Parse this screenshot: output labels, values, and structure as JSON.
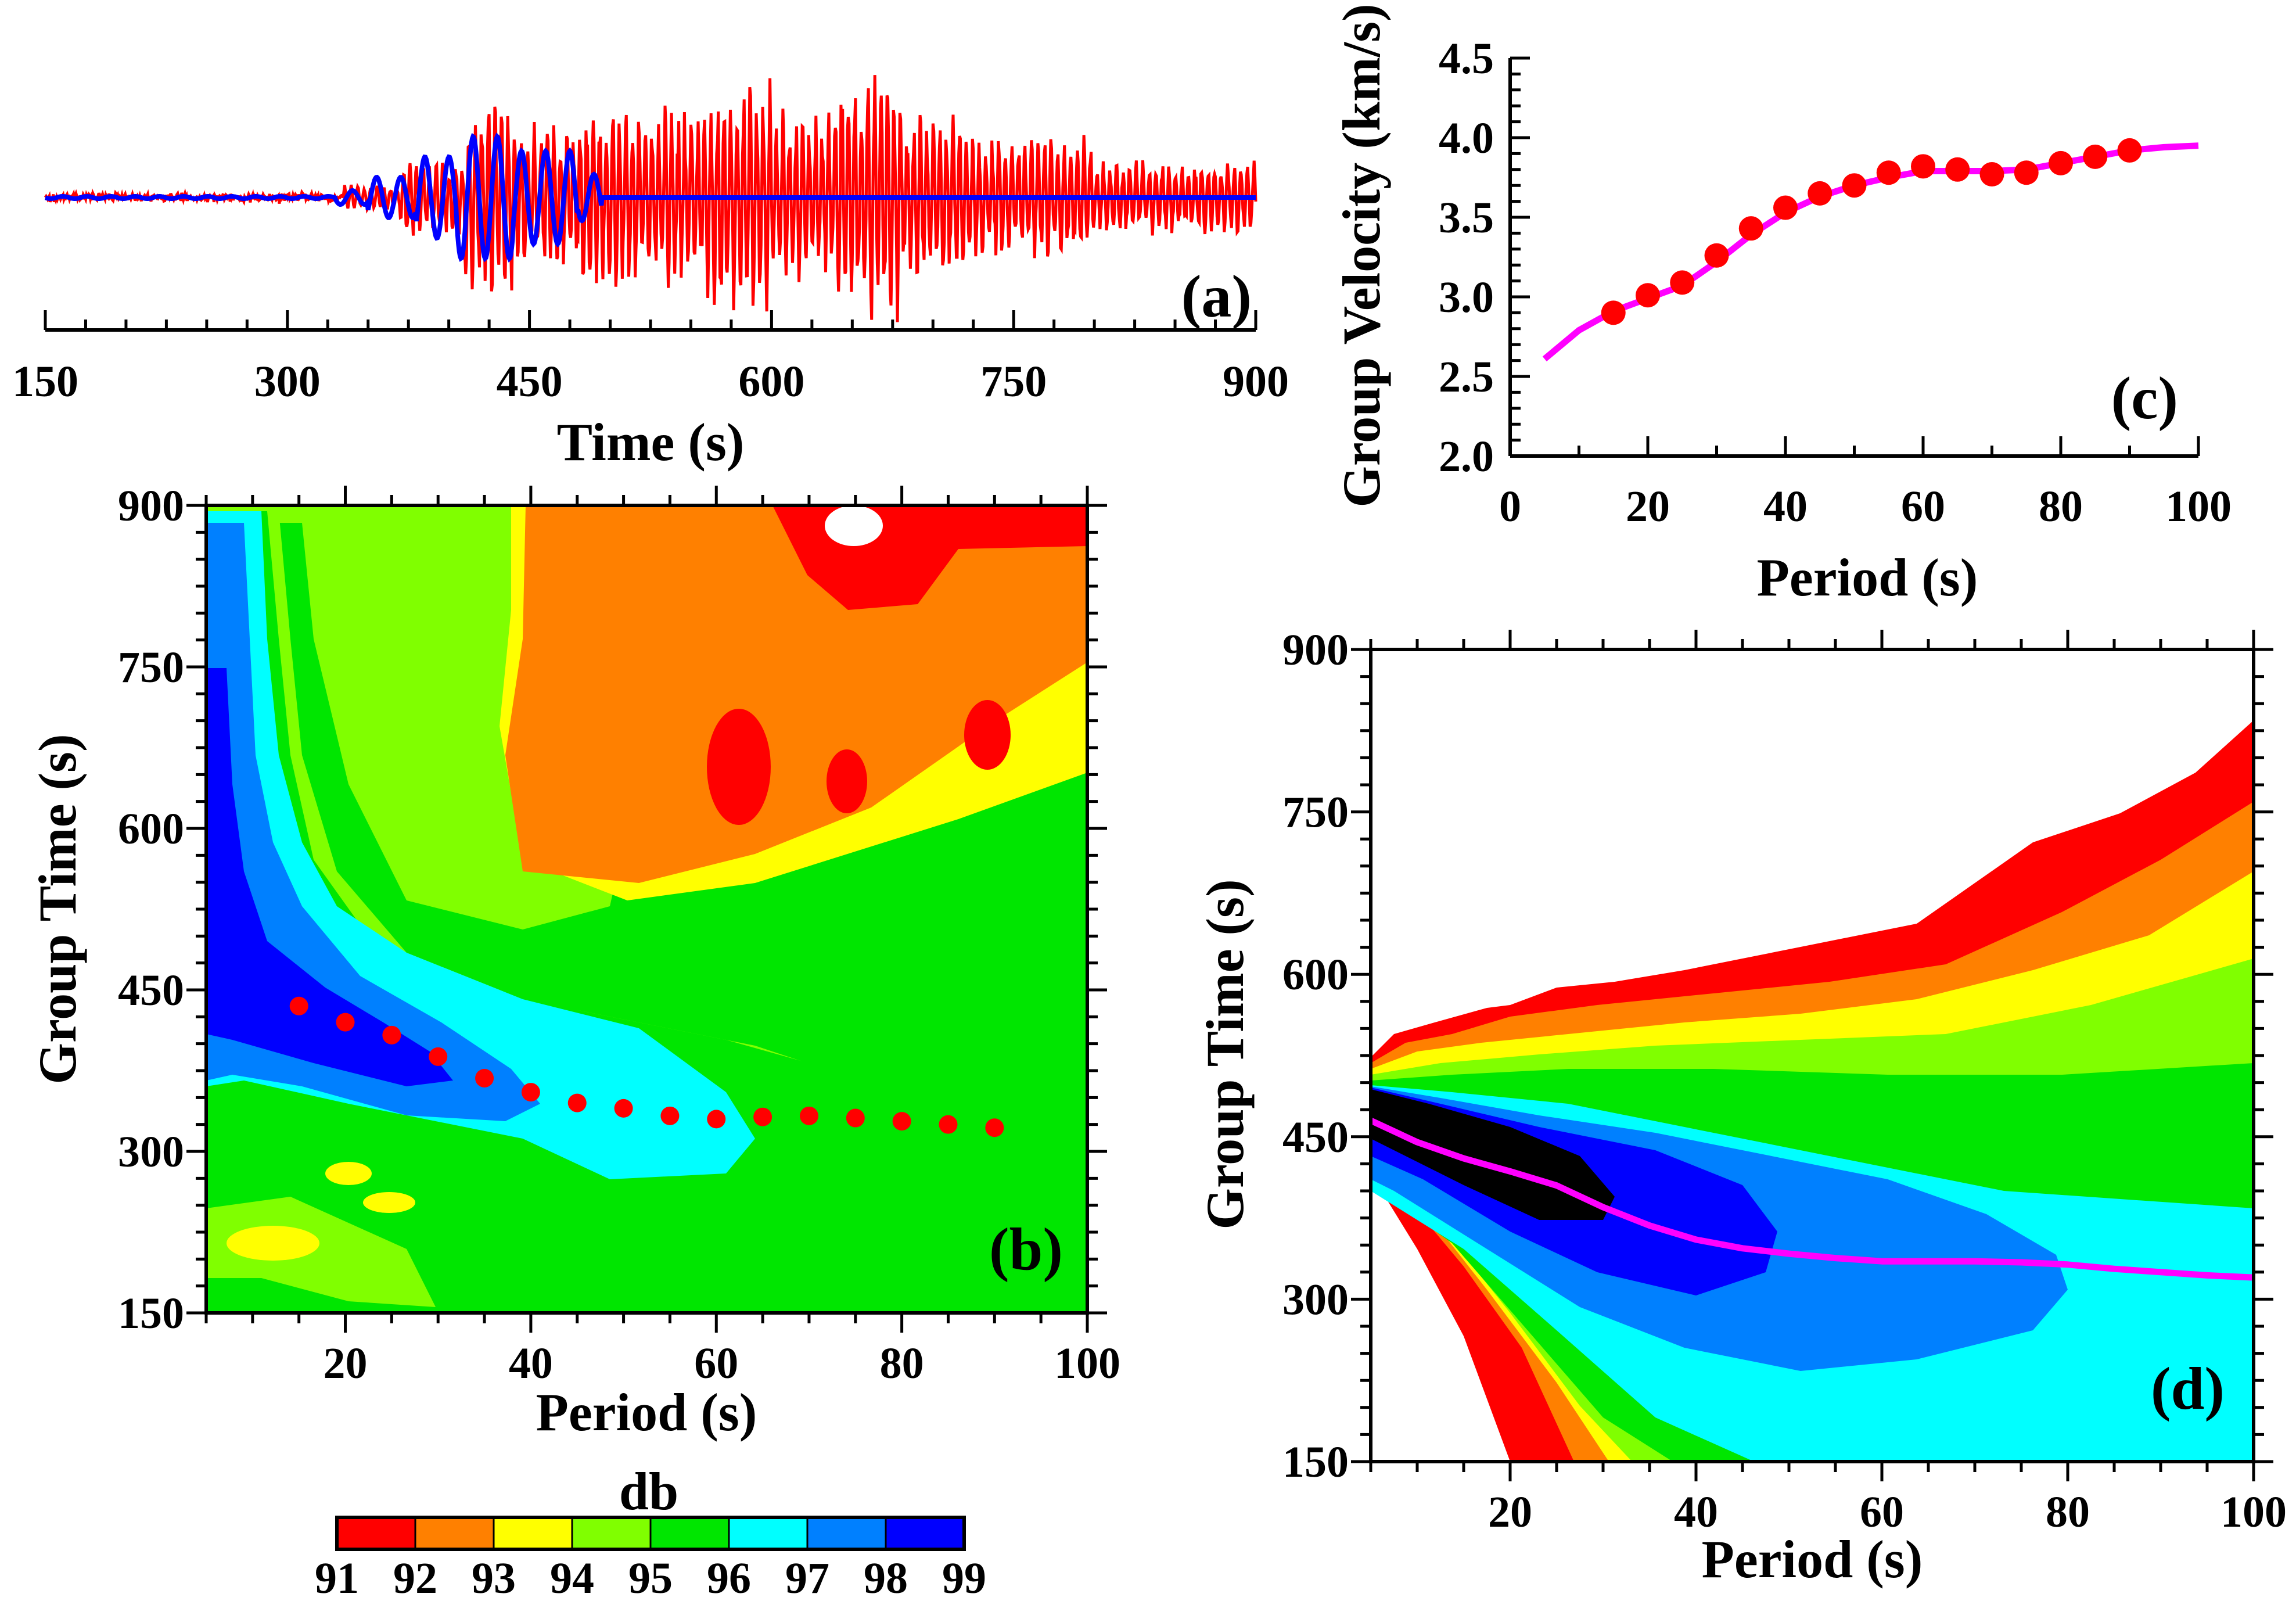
{
  "colors": {
    "levels": [
      "#ff0000",
      "#ff8000",
      "#ffff00",
      "#80ff00",
      "#00e600",
      "#00ffff",
      "#0080ff",
      "#0000ff"
    ],
    "trace_raw": "#ff0000",
    "trace_filtered": "#0000ff",
    "curve": "#ff00ff",
    "dots": "#ff0000"
  },
  "chart_data": [
    {
      "id": "a",
      "type": "line",
      "panel_label": "(a)",
      "xlabel": "Time (s)",
      "xlim": [
        150,
        900
      ],
      "x_ticks": [
        150,
        300,
        450,
        600,
        750,
        900
      ],
      "x_tick_labels": [
        "150",
        "300",
        "450",
        "600",
        "750",
        "900"
      ],
      "series": [
        {
          "name": "raw seismogram",
          "color": "#ff0000",
          "t_start": 150,
          "t_end": 900,
          "amplitude_peak": 1.0
        },
        {
          "name": "filtered seismogram",
          "color": "#0000ff",
          "t_start": 150,
          "t_end": 900,
          "flat_after": 495
        }
      ]
    },
    {
      "id": "b",
      "type": "heatmap",
      "panel_label": "(b)",
      "xlabel": "Period (s)",
      "ylabel": "Group Time (s)",
      "xlim": [
        5,
        100
      ],
      "ylim": [
        150,
        900
      ],
      "x_ticks": [
        20,
        40,
        60,
        80,
        100
      ],
      "x_tick_labels": [
        "20",
        "40",
        "60",
        "80",
        "100"
      ],
      "y_ticks": [
        150,
        300,
        450,
        600,
        750,
        900
      ],
      "y_tick_labels": [
        "150",
        "300",
        "450",
        "600",
        "750",
        "900"
      ],
      "picks": {
        "period": [
          15,
          20,
          25,
          30,
          35,
          40,
          45,
          50,
          55,
          60,
          65,
          70,
          75,
          80,
          85,
          90
        ],
        "group_time": [
          435,
          420,
          408,
          388,
          368,
          355,
          345,
          340,
          333,
          330,
          332,
          333,
          331,
          328,
          325,
          322
        ]
      }
    },
    {
      "id": "c",
      "type": "scatter",
      "panel_label": "(c)",
      "xlabel": "Period (s)",
      "ylabel": "Group Velocity (km/s)",
      "xlim": [
        0,
        100
      ],
      "ylim": [
        2.0,
        4.5
      ],
      "x_ticks": [
        0,
        20,
        40,
        60,
        80,
        100
      ],
      "x_tick_labels": [
        "0",
        "20",
        "40",
        "60",
        "80",
        "100"
      ],
      "y_ticks": [
        2.0,
        2.5,
        3.0,
        3.5,
        4.0,
        4.5
      ],
      "y_tick_labels": [
        "2.0",
        "2.5",
        "3.0",
        "3.5",
        "4.0",
        "4.5"
      ],
      "points": {
        "x": [
          15,
          20,
          25,
          30,
          35,
          40,
          45,
          50,
          55,
          60,
          65,
          70,
          75,
          80,
          85,
          90
        ],
        "y": [
          2.9,
          3.01,
          3.09,
          3.26,
          3.43,
          3.56,
          3.65,
          3.7,
          3.78,
          3.82,
          3.8,
          3.77,
          3.78,
          3.84,
          3.88,
          3.92
        ]
      },
      "curve": {
        "x": [
          5,
          10,
          15,
          20,
          25,
          30,
          35,
          40,
          45,
          50,
          55,
          60,
          65,
          70,
          75,
          80,
          85,
          90,
          95,
          100
        ],
        "y": [
          2.61,
          2.79,
          2.91,
          2.99,
          3.07,
          3.22,
          3.39,
          3.53,
          3.63,
          3.7,
          3.75,
          3.79,
          3.79,
          3.79,
          3.8,
          3.84,
          3.88,
          3.92,
          3.94,
          3.95
        ]
      }
    },
    {
      "id": "d",
      "type": "heatmap",
      "panel_label": "(d)",
      "xlabel": "Period (s)",
      "ylabel": "Group Time (s)",
      "xlim": [
        5,
        100
      ],
      "ylim": [
        150,
        900
      ],
      "x_ticks": [
        20,
        40,
        60,
        80,
        100
      ],
      "x_tick_labels": [
        "20",
        "40",
        "60",
        "80",
        "100"
      ],
      "y_ticks": [
        150,
        300,
        450,
        600,
        750,
        900
      ],
      "y_tick_labels": [
        "150",
        "300",
        "450",
        "600",
        "750",
        "900"
      ],
      "curve": {
        "period": [
          5,
          10,
          15,
          20,
          25,
          30,
          35,
          40,
          45,
          50,
          55,
          60,
          65,
          70,
          75,
          80,
          85,
          90,
          95,
          100
        ],
        "group_time": [
          465,
          445,
          430,
          418,
          405,
          385,
          368,
          355,
          347,
          342,
          338,
          335,
          335,
          335,
          334,
          332,
          328,
          325,
          322,
          320
        ]
      }
    }
  ],
  "colorbar": {
    "title": "db",
    "labels": [
      "91",
      "92",
      "93",
      "94",
      "95",
      "96",
      "97",
      "98",
      "99"
    ],
    "levels": [
      91,
      92,
      93,
      94,
      95,
      96,
      97,
      98,
      99
    ]
  }
}
